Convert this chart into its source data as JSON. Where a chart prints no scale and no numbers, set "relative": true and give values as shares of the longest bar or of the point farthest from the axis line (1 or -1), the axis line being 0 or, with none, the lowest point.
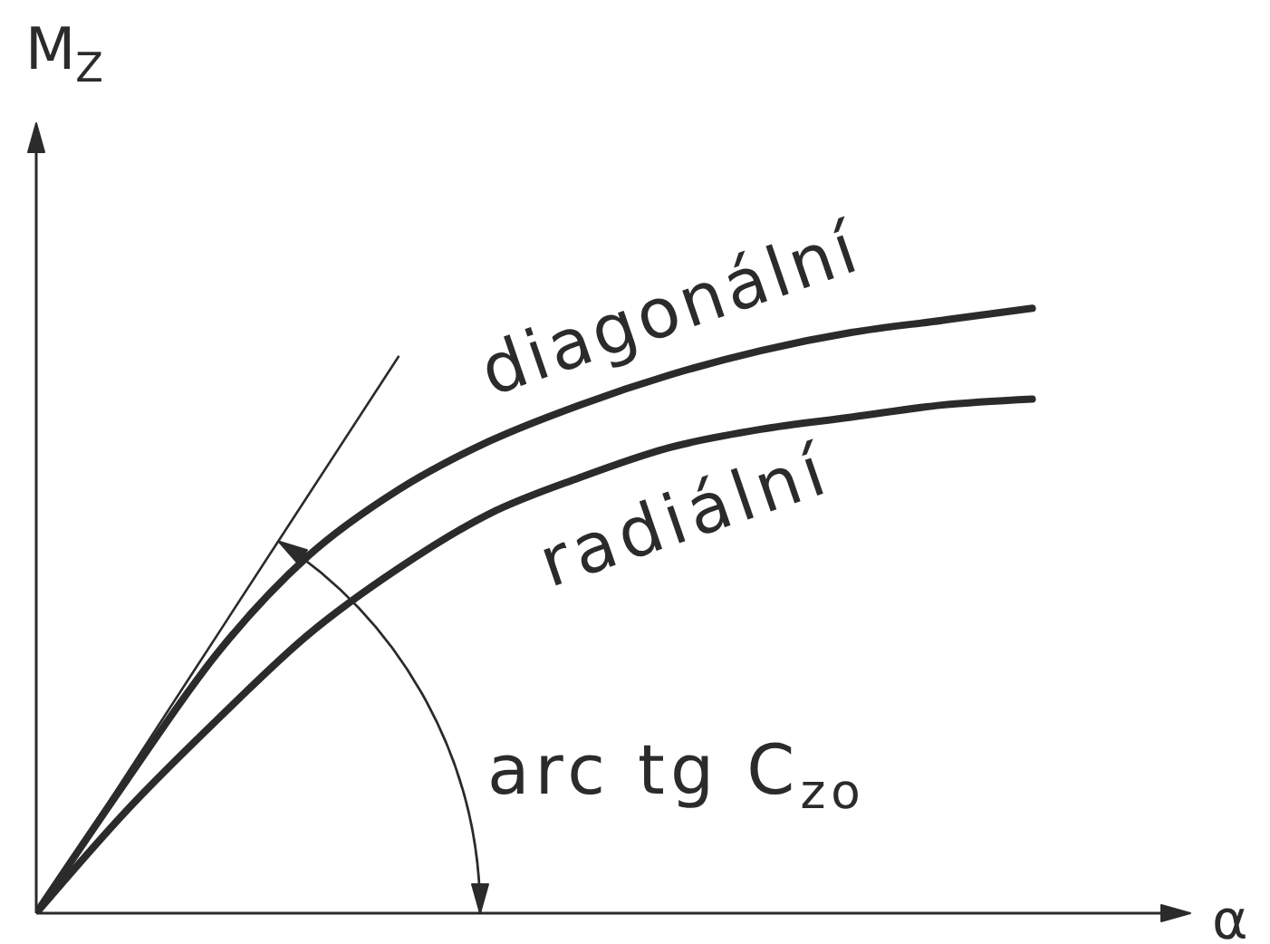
{
  "chart_data": {
    "type": "line",
    "relative": true,
    "xlabel": "α",
    "ylabel": "M$_{Z}$",
    "marker": "none",
    "categories": [
      null,
      null,
      null,
      null,
      null,
      null,
      null,
      null,
      null,
      null,
      null,
      null
    ],
    "series": [
      {
        "name": "diagonální",
        "color": "#2b2b2b",
        "values": [
          0,
          0.22,
          0.43,
          0.59,
          0.7,
          0.78,
          0.84,
          0.89,
          0.93,
          0.96,
          0.98,
          1
        ]
      },
      {
        "name": "radiální",
        "color": "#2b2b2b",
        "values": [
          0,
          0.17,
          0.32,
          0.46,
          0.57,
          0.66,
          0.72,
          0.77,
          0.8,
          0.82,
          0.84,
          0.85
        ]
      },
      {
        "color": "#2b2b2b",
        "values": [
          0,
          0.23,
          0.46,
          0.69,
          0.92,
          null,
          null,
          null,
          null,
          null,
          null,
          null
        ]
      }
    ],
    "annotations": [
      "arc tg C$_{zo}$"
    ]
  }
}
